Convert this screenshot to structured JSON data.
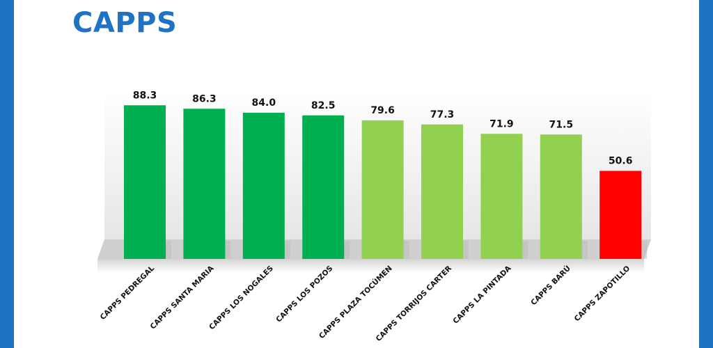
{
  "title": "CAPPS",
  "chart_data": {
    "type": "bar",
    "categories": [
      "CAPPS PEDREGAL",
      "CAPPS SANTA MARIA",
      "CAPPS LOS NOGALES",
      "CAPPS LOS POZOS",
      "CAPPS PLAZA TOCÚMEN",
      "CAPPS TORRIJOS CARTER",
      "CAPPS LA PINTADA",
      "CAPPS BARÚ",
      "CAPPS ZAPOTILLO"
    ],
    "values": [
      88.3,
      86.3,
      84.0,
      82.5,
      79.6,
      77.3,
      71.9,
      71.5,
      50.6
    ],
    "value_labels": [
      "88.3",
      "86.3",
      "84.0",
      "82.5",
      "79.6",
      "77.3",
      "71.9",
      "71.5",
      "50.6"
    ],
    "bar_colors": [
      "#00b050",
      "#00b050",
      "#00b050",
      "#00b050",
      "#92d050",
      "#92d050",
      "#92d050",
      "#92d050",
      "#ff0000"
    ],
    "ylim": [
      0,
      100
    ],
    "grid": false,
    "legend": "none"
  }
}
